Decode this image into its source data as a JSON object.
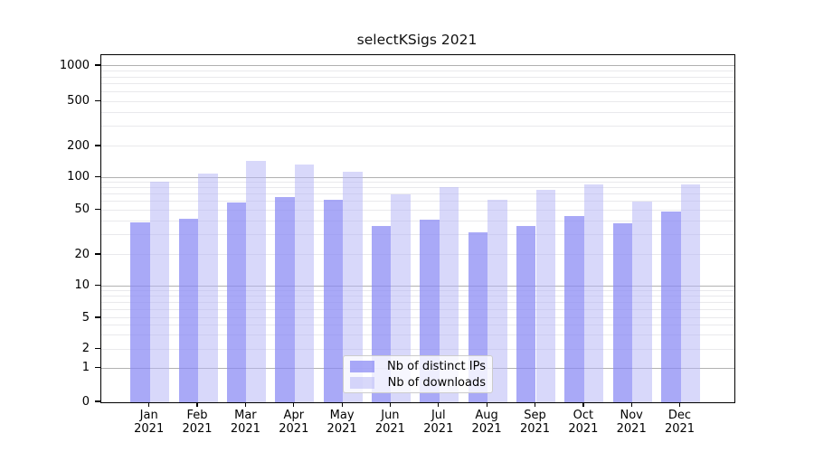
{
  "chart_data": {
    "type": "bar",
    "title": "selectKSigs 2021",
    "year_label": "2021",
    "categories": [
      "Jan",
      "Feb",
      "Mar",
      "Apr",
      "May",
      "Jun",
      "Jul",
      "Aug",
      "Sep",
      "Oct",
      "Nov",
      "Dec"
    ],
    "series": [
      {
        "name": "Nb of distinct IPs",
        "color": "rgba(136,136,244,0.72)",
        "values": [
          39,
          42,
          59,
          66,
          63,
          36,
          41,
          32,
          36,
          44,
          38,
          49
        ]
      },
      {
        "name": "Nb of downloads",
        "color": "rgba(180,180,245,0.52)",
        "values": [
          92,
          110,
          145,
          135,
          115,
          70,
          81,
          62,
          77,
          86,
          60,
          87
        ]
      }
    ],
    "y_ticks": [
      0,
      1,
      2,
      5,
      10,
      20,
      50,
      100,
      200,
      500,
      1000
    ],
    "ylim": [
      0,
      1200
    ],
    "scale": "log-like",
    "grid": "horizontal major and minor",
    "legend_position": "inside-bottom-center"
  },
  "colors": {
    "grid_major": "#b1b1b1",
    "grid_minor": "#e9e9ec",
    "spine": "#000000",
    "text": "#000000",
    "legend_border": "#cccccc",
    "legend_background": "rgba(255,255,255,0.8)"
  }
}
